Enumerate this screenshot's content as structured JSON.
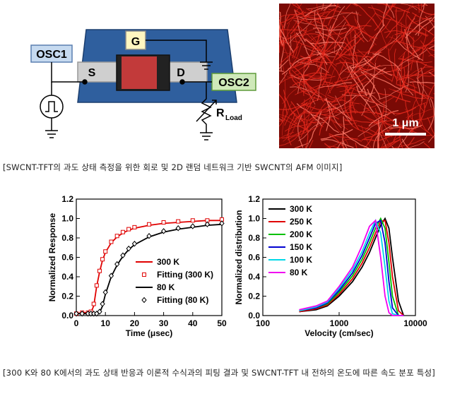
{
  "circuit": {
    "gate": "G",
    "source": "S",
    "drain": "D",
    "osc1": "OSC1",
    "osc2": "OSC2",
    "resistor": "R",
    "resistor_sub": "Load"
  },
  "afm": {
    "scale_bar": "1 μm"
  },
  "caption1": "[SWCNT-TFT의 과도 상태 측정을 위한 회로 및 2D 랜덤 네트워크 기반 SWCNT의 AFM 이미지]",
  "caption2": "[300 K와 80 K에서의 과도 상태 반응과 이론적 수식과의 피팅 결과 및 SWCNT-TFT 내 전하의 온도에 따른 속도 분포 특성]",
  "chart_data": [
    {
      "type": "line",
      "xlabel": "Time (μsec)",
      "ylabel": "Normalized Response",
      "x": [
        0,
        2,
        4,
        5,
        6,
        7,
        8,
        9,
        10,
        12,
        14,
        16,
        18,
        20,
        25,
        30,
        35,
        40,
        45,
        50
      ],
      "xlim": [
        0,
        50
      ],
      "xticks": [
        0,
        10,
        20,
        30,
        40,
        50
      ],
      "ylim": [
        0,
        1.2
      ],
      "yticks": [
        {
          "value": 0,
          "label": "0.0"
        },
        0.2,
        0.4,
        0.6,
        0.8,
        {
          "value": 1,
          "label": "1.0"
        },
        1.2
      ],
      "legend": "lower right",
      "series": [
        {
          "name": "300 K",
          "color": "#e00000",
          "marker": "none",
          "values": [
            0.02,
            0.03,
            0.03,
            0.03,
            0.1,
            0.3,
            0.45,
            0.57,
            0.65,
            0.75,
            0.81,
            0.85,
            0.88,
            0.9,
            0.93,
            0.95,
            0.96,
            0.97,
            0.98,
            0.98
          ]
        },
        {
          "name": "Fitting (300 K)",
          "color": "#e00000",
          "marker": "square",
          "values": [
            0.02,
            0.03,
            0.03,
            0.04,
            0.12,
            0.31,
            0.46,
            0.58,
            0.66,
            0.76,
            0.82,
            0.86,
            0.89,
            0.91,
            0.94,
            0.96,
            0.97,
            0.98,
            0.98,
            0.99
          ]
        },
        {
          "name": "80 K",
          "color": "#000000",
          "marker": "none",
          "values": [
            0.02,
            0.02,
            0.02,
            0.02,
            0.02,
            0.02,
            0.03,
            0.1,
            0.22,
            0.4,
            0.52,
            0.61,
            0.68,
            0.73,
            0.81,
            0.86,
            0.89,
            0.91,
            0.93,
            0.94
          ]
        },
        {
          "name": "Fitting (80 K)",
          "color": "#000000",
          "marker": "diamond",
          "values": [
            0.02,
            0.02,
            0.02,
            0.02,
            0.02,
            0.02,
            0.04,
            0.12,
            0.24,
            0.41,
            0.53,
            0.62,
            0.69,
            0.74,
            0.82,
            0.87,
            0.9,
            0.92,
            0.94,
            0.95
          ]
        }
      ]
    },
    {
      "type": "line",
      "xlabel": "Velocity (cm/sec)",
      "ylabel": "Normalized distribution",
      "x": [
        300,
        500,
        700,
        1000,
        1500,
        2000,
        2500,
        3000,
        3500,
        4000,
        4500,
        5000,
        6000,
        7000
      ],
      "xlim": [
        100,
        10000
      ],
      "xticks": [
        100,
        1000,
        10000
      ],
      "xscale": "log",
      "ylim": [
        0,
        1.2
      ],
      "yticks": [
        {
          "value": 0,
          "label": "0.0"
        },
        0.2,
        0.4,
        0.6,
        0.8,
        {
          "value": 1,
          "label": "1.0"
        },
        1.2
      ],
      "legend": "upper left",
      "series": [
        {
          "name": "300 K",
          "color": "#000000",
          "marker": "none",
          "values": [
            0.04,
            0.06,
            0.1,
            0.2,
            0.35,
            0.5,
            0.65,
            0.8,
            0.93,
            1.0,
            0.9,
            0.6,
            0.15,
            0
          ]
        },
        {
          "name": "250 K",
          "color": "#e00000",
          "marker": "none",
          "values": [
            0.04,
            0.07,
            0.11,
            0.22,
            0.38,
            0.54,
            0.7,
            0.85,
            0.97,
            0.98,
            0.75,
            0.4,
            0.05,
            0
          ]
        },
        {
          "name": "200 K",
          "color": "#00c000",
          "marker": "none",
          "values": [
            0.05,
            0.08,
            0.12,
            0.24,
            0.41,
            0.58,
            0.75,
            0.9,
            1.0,
            0.9,
            0.55,
            0.2,
            0,
            0
          ]
        },
        {
          "name": "150 K",
          "color": "#0000d0",
          "marker": "none",
          "values": [
            0.05,
            0.08,
            0.13,
            0.26,
            0.44,
            0.62,
            0.8,
            0.95,
            0.98,
            0.75,
            0.35,
            0.08,
            0,
            0
          ]
        },
        {
          "name": "100 K",
          "color": "#00d8e8",
          "marker": "none",
          "values": [
            0.05,
            0.09,
            0.14,
            0.28,
            0.47,
            0.66,
            0.85,
            0.98,
            0.85,
            0.5,
            0.15,
            0.02,
            0,
            0
          ]
        },
        {
          "name": "80 K",
          "color": "#f000f0",
          "marker": "none",
          "values": [
            0.06,
            0.1,
            0.15,
            0.3,
            0.5,
            0.72,
            0.92,
            0.98,
            0.6,
            0.2,
            0.03,
            0,
            0,
            0
          ]
        }
      ]
    }
  ]
}
